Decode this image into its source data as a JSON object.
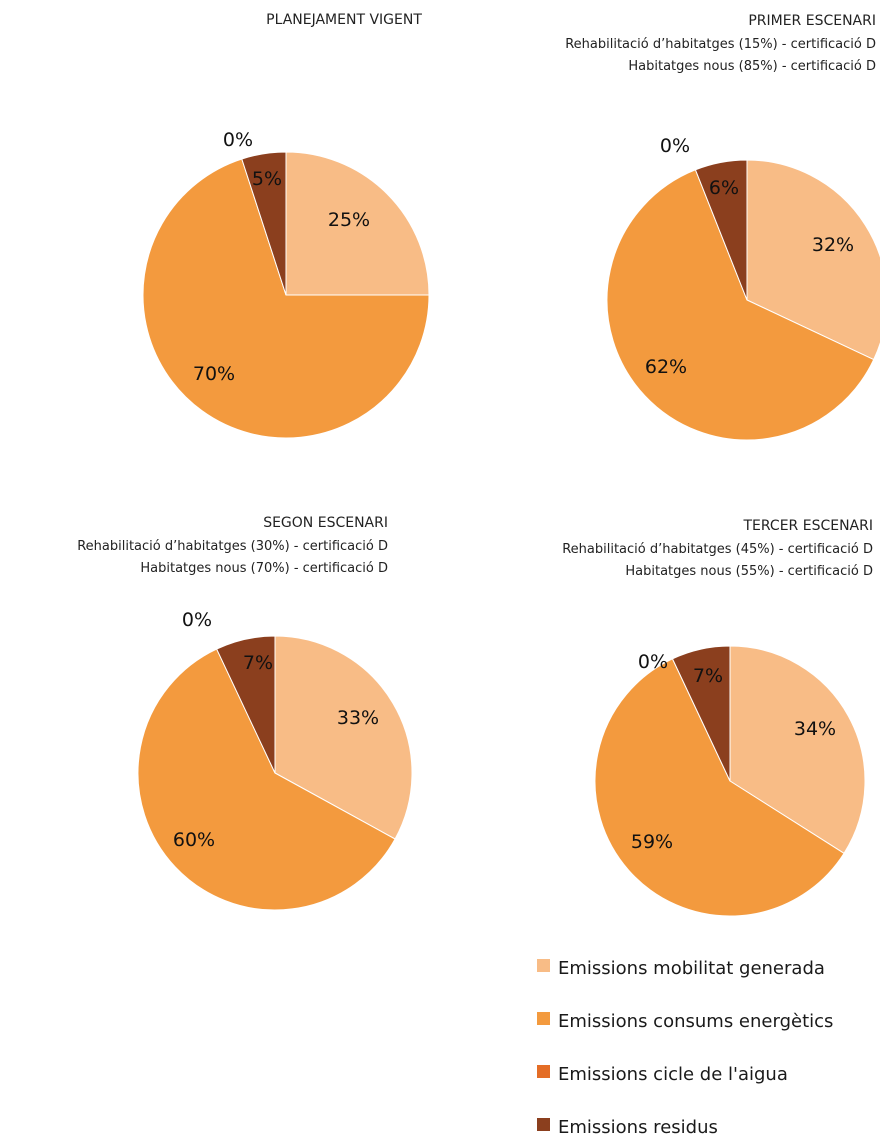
{
  "colors": {
    "mobilitat": "#F8BC86",
    "energia": "#F39A3E",
    "aigua": "#E46D26",
    "residus": "#8B3F1E"
  },
  "legend": [
    {
      "label": "Emissions mobilitat generada",
      "color": "#F8BC86"
    },
    {
      "label": "Emissions consums energètics",
      "color": "#F39A3E"
    },
    {
      "label": "Emissions cicle de l'aigua",
      "color": "#E46D26"
    },
    {
      "label": "Emissions residus",
      "color": "#8B3F1E"
    }
  ],
  "chart_data": [
    {
      "type": "pie",
      "title": "PLANEJAMENT VIGENT",
      "subtitles": [],
      "categories": [
        "Emissions mobilitat generada",
        "Emissions consums energètics",
        "Emissions cicle de l'aigua",
        "Emissions residus"
      ],
      "values": [
        25,
        70,
        0,
        5
      ],
      "labels": [
        "25%",
        "70%",
        "0%",
        "5%"
      ]
    },
    {
      "type": "pie",
      "title": "PRIMER ESCENARI",
      "subtitles": [
        "Rehabilitació d’habitatges (15%) - certificació D",
        "Habitatges nous (85%) - certificació D"
      ],
      "categories": [
        "Emissions mobilitat generada",
        "Emissions consums energètics",
        "Emissions cicle de l'aigua",
        "Emissions residus"
      ],
      "values": [
        32,
        62,
        0,
        6
      ],
      "labels": [
        "32%",
        "62%",
        "0%",
        "6%"
      ]
    },
    {
      "type": "pie",
      "title": "SEGON ESCENARI",
      "subtitles": [
        "Rehabilitació d’habitatges (30%) - certificació D",
        "Habitatges nous (70%) - certificació D"
      ],
      "categories": [
        "Emissions mobilitat generada",
        "Emissions consums energètics",
        "Emissions cicle de l'aigua",
        "Emissions residus"
      ],
      "values": [
        33,
        60,
        0,
        7
      ],
      "labels": [
        "33%",
        "60%",
        "0%",
        "7%"
      ]
    },
    {
      "type": "pie",
      "title": "TERCER ESCENARI",
      "subtitles": [
        "Rehabilitació d’habitatges (45%) - certificació D",
        "Habitatges nous (55%) - certificació D"
      ],
      "categories": [
        "Emissions mobilitat generada",
        "Emissions consums energètics",
        "Emissions cicle de l'aigua",
        "Emissions residus"
      ],
      "values": [
        34,
        59,
        0,
        7
      ],
      "labels": [
        "34%",
        "59%",
        "0%",
        "7%"
      ]
    }
  ]
}
